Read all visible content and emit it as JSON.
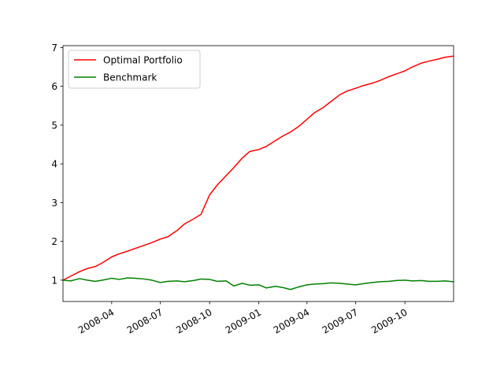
{
  "chart_data": {
    "type": "line",
    "title": "",
    "xlabel": "",
    "ylabel": "",
    "x_range": [
      "2008-01-01",
      "2009-12-31"
    ],
    "ylim": [
      0.45,
      7.05
    ],
    "xticks": [
      {
        "date": "2008-04-01",
        "label": "2008-04"
      },
      {
        "date": "2008-07-01",
        "label": "2008-07"
      },
      {
        "date": "2008-10-01",
        "label": "2008-10"
      },
      {
        "date": "2009-01-01",
        "label": "2009-01"
      },
      {
        "date": "2009-04-01",
        "label": "2009-04"
      },
      {
        "date": "2009-07-01",
        "label": "2009-07"
      },
      {
        "date": "2009-10-01",
        "label": "2009-10"
      }
    ],
    "yticks": [
      1,
      2,
      3,
      4,
      5,
      6,
      7
    ],
    "grid": false,
    "legend": {
      "position": "upper-left"
    },
    "series": [
      {
        "name": "Optimal Portfolio",
        "color": "#ff0000",
        "x": [
          "2008-01-01",
          "2008-01-15",
          "2008-02-01",
          "2008-02-15",
          "2008-03-01",
          "2008-03-15",
          "2008-04-01",
          "2008-04-15",
          "2008-05-01",
          "2008-05-15",
          "2008-06-01",
          "2008-06-15",
          "2008-07-01",
          "2008-07-15",
          "2008-08-01",
          "2008-08-15",
          "2008-09-01",
          "2008-09-15",
          "2008-10-01",
          "2008-10-15",
          "2008-11-01",
          "2008-11-15",
          "2008-12-01",
          "2008-12-15",
          "2009-01-01",
          "2009-01-15",
          "2009-02-01",
          "2009-02-15",
          "2009-03-01",
          "2009-03-15",
          "2009-04-01",
          "2009-04-15",
          "2009-05-01",
          "2009-05-15",
          "2009-06-01",
          "2009-06-15",
          "2009-07-01",
          "2009-07-15",
          "2009-08-01",
          "2009-08-15",
          "2009-09-01",
          "2009-09-15",
          "2009-10-01",
          "2009-10-15",
          "2009-11-01",
          "2009-11-15",
          "2009-12-01",
          "2009-12-15",
          "2009-12-31"
        ],
        "values": [
          1.0,
          1.1,
          1.22,
          1.3,
          1.35,
          1.45,
          1.6,
          1.68,
          1.75,
          1.82,
          1.9,
          1.97,
          2.06,
          2.12,
          2.28,
          2.45,
          2.58,
          2.7,
          3.2,
          3.45,
          3.7,
          3.9,
          4.15,
          4.32,
          4.37,
          4.45,
          4.6,
          4.72,
          4.82,
          4.95,
          5.15,
          5.32,
          5.45,
          5.6,
          5.78,
          5.88,
          5.95,
          6.02,
          6.08,
          6.15,
          6.25,
          6.32,
          6.4,
          6.5,
          6.6,
          6.65,
          6.7,
          6.75,
          6.78
        ]
      },
      {
        "name": "Benchmark",
        "color": "#008000",
        "x": [
          "2008-01-01",
          "2008-01-15",
          "2008-02-01",
          "2008-02-15",
          "2008-03-01",
          "2008-03-15",
          "2008-04-01",
          "2008-04-15",
          "2008-05-01",
          "2008-05-15",
          "2008-06-01",
          "2008-06-15",
          "2008-07-01",
          "2008-07-15",
          "2008-08-01",
          "2008-08-15",
          "2008-09-01",
          "2008-09-15",
          "2008-10-01",
          "2008-10-15",
          "2008-11-01",
          "2008-11-15",
          "2008-12-01",
          "2008-12-15",
          "2009-01-01",
          "2009-01-15",
          "2009-02-01",
          "2009-02-15",
          "2009-03-01",
          "2009-03-15",
          "2009-04-01",
          "2009-04-15",
          "2009-05-01",
          "2009-05-15",
          "2009-06-01",
          "2009-06-15",
          "2009-07-01",
          "2009-07-15",
          "2009-08-01",
          "2009-08-15",
          "2009-09-01",
          "2009-09-15",
          "2009-10-01",
          "2009-10-15",
          "2009-11-01",
          "2009-11-15",
          "2009-12-01",
          "2009-12-15",
          "2009-12-31"
        ],
        "values": [
          1.0,
          0.98,
          1.04,
          1.0,
          0.97,
          1.0,
          1.05,
          1.02,
          1.06,
          1.05,
          1.03,
          1.0,
          0.94,
          0.97,
          0.98,
          0.96,
          0.99,
          1.03,
          1.02,
          0.97,
          0.98,
          0.85,
          0.92,
          0.87,
          0.88,
          0.8,
          0.84,
          0.81,
          0.76,
          0.82,
          0.88,
          0.9,
          0.91,
          0.93,
          0.92,
          0.9,
          0.88,
          0.91,
          0.94,
          0.96,
          0.97,
          0.99,
          1.0,
          0.98,
          0.99,
          0.97,
          0.97,
          0.98,
          0.96
        ]
      }
    ]
  }
}
